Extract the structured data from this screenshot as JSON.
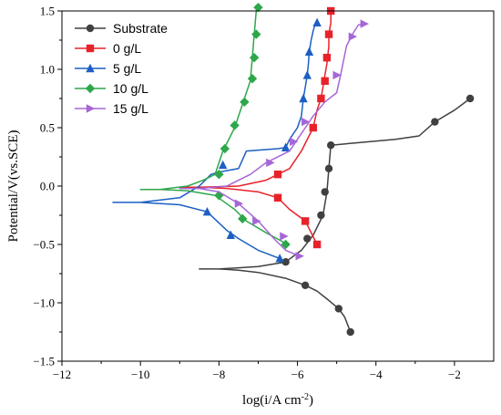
{
  "chart_data": {
    "type": "line",
    "title": "",
    "xlabel": "log(i/A cm",
    "xlabel_sup": "-2",
    "xlabel_tail": ")",
    "ylabel": "Potential/V(vs.SCE)",
    "xlim": [
      -12,
      -1
    ],
    "ylim": [
      -1.5,
      1.5
    ],
    "xticks": [
      -12,
      -10,
      -8,
      -6,
      -4,
      -2
    ],
    "yticks": [
      -1.5,
      -1.0,
      -0.5,
      0.0,
      0.5,
      1.0,
      1.5
    ],
    "xtick_labels": [
      "−12",
      "−10",
      "−8",
      "−6",
      "−4",
      "−2"
    ],
    "ytick_labels": [
      "−1.5",
      "−1.0",
      "−0.5",
      "0.0",
      "0.5",
      "1.0",
      "1.5"
    ],
    "grid": false,
    "legend_position": "top-left",
    "series": [
      {
        "name": "Substrate",
        "color": "#404040",
        "marker": "circle",
        "line": [
          [
            -4.65,
            -1.25
          ],
          [
            -4.8,
            -1.12
          ],
          [
            -4.95,
            -1.05
          ],
          [
            -5.2,
            -0.98
          ],
          [
            -5.5,
            -0.9
          ],
          [
            -5.8,
            -0.85
          ],
          [
            -6.3,
            -0.79
          ],
          [
            -7.0,
            -0.74
          ],
          [
            -7.5,
            -0.72
          ],
          [
            -8.0,
            -0.71
          ],
          [
            -8.5,
            -0.71
          ],
          [
            -8.0,
            -0.71
          ],
          [
            -7.0,
            -0.69
          ],
          [
            -6.3,
            -0.65
          ],
          [
            -5.9,
            -0.55
          ],
          [
            -5.6,
            -0.42
          ],
          [
            -5.35,
            -0.25
          ],
          [
            -5.25,
            -0.05
          ],
          [
            -5.2,
            0.15
          ],
          [
            -5.15,
            0.35
          ],
          [
            -4.5,
            0.37
          ],
          [
            -3.5,
            0.4
          ],
          [
            -2.9,
            0.43
          ],
          [
            -2.5,
            0.55
          ],
          [
            -2.0,
            0.65
          ],
          [
            -1.6,
            0.75
          ]
        ],
        "markers": [
          [
            -4.65,
            -1.25
          ],
          [
            -4.95,
            -1.05
          ],
          [
            -5.8,
            -0.85
          ],
          [
            -6.3,
            -0.65
          ],
          [
            -5.75,
            -0.45
          ],
          [
            -5.4,
            -0.25
          ],
          [
            -5.3,
            -0.05
          ],
          [
            -5.2,
            0.15
          ],
          [
            -5.15,
            0.35
          ],
          [
            -2.5,
            0.55
          ],
          [
            -1.6,
            0.75
          ]
        ]
      },
      {
        "name": "0 g/L",
        "color": "#e8222a",
        "marker": "square",
        "line": [
          [
            -5.5,
            -0.5
          ],
          [
            -5.8,
            -0.3
          ],
          [
            -6.2,
            -0.2
          ],
          [
            -6.5,
            -0.1
          ],
          [
            -7.0,
            -0.05
          ],
          [
            -7.8,
            -0.02
          ],
          [
            -8.5,
            -0.01
          ],
          [
            -9.0,
            -0.01
          ],
          [
            -8.5,
            -0.01
          ],
          [
            -7.5,
            0.0
          ],
          [
            -6.8,
            0.05
          ],
          [
            -6.5,
            0.1
          ],
          [
            -6.2,
            0.15
          ],
          [
            -5.9,
            0.3
          ],
          [
            -5.6,
            0.5
          ],
          [
            -5.5,
            0.65
          ],
          [
            -5.4,
            0.75
          ],
          [
            -5.35,
            0.85
          ],
          [
            -5.3,
            0.95
          ],
          [
            -5.25,
            1.05
          ],
          [
            -5.2,
            1.2
          ],
          [
            -5.2,
            1.3
          ],
          [
            -5.15,
            1.4
          ],
          [
            -5.15,
            1.5
          ]
        ],
        "markers": [
          [
            -5.5,
            -0.5
          ],
          [
            -5.8,
            -0.3
          ],
          [
            -6.5,
            -0.1
          ],
          [
            -6.5,
            0.1
          ],
          [
            -5.6,
            0.5
          ],
          [
            -5.4,
            0.75
          ],
          [
            -5.3,
            0.9
          ],
          [
            -5.25,
            1.1
          ],
          [
            -5.2,
            1.3
          ],
          [
            -5.15,
            1.5
          ]
        ]
      },
      {
        "name": "5 g/L",
        "color": "#1c5fc2",
        "marker": "triangle-up",
        "line": [
          [
            -6.45,
            -0.62
          ],
          [
            -7.0,
            -0.55
          ],
          [
            -7.5,
            -0.45
          ],
          [
            -7.8,
            -0.38
          ],
          [
            -8.3,
            -0.22
          ],
          [
            -9.0,
            -0.16
          ],
          [
            -10.0,
            -0.14
          ],
          [
            -10.7,
            -0.14
          ],
          [
            -10.0,
            -0.14
          ],
          [
            -9.0,
            -0.1
          ],
          [
            -8.5,
            0.0
          ],
          [
            -8.2,
            0.1
          ],
          [
            -8.0,
            0.12
          ],
          [
            -7.5,
            0.15
          ],
          [
            -7.3,
            0.3
          ],
          [
            -6.5,
            0.32
          ],
          [
            -6.3,
            0.33
          ],
          [
            -6.2,
            0.4
          ],
          [
            -6.0,
            0.5
          ],
          [
            -5.9,
            0.6
          ],
          [
            -5.85,
            0.75
          ],
          [
            -5.8,
            0.85
          ],
          [
            -5.75,
            0.95
          ],
          [
            -5.72,
            1.05
          ],
          [
            -5.7,
            1.15
          ],
          [
            -5.65,
            1.25
          ],
          [
            -5.6,
            1.33
          ],
          [
            -5.55,
            1.38
          ],
          [
            -5.5,
            1.4
          ]
        ],
        "markers": [
          [
            -6.45,
            -0.62
          ],
          [
            -7.7,
            -0.42
          ],
          [
            -8.3,
            -0.22
          ],
          [
            -7.9,
            0.18
          ],
          [
            -6.3,
            0.33
          ],
          [
            -5.85,
            0.75
          ],
          [
            -5.75,
            0.95
          ],
          [
            -5.7,
            1.15
          ],
          [
            -5.5,
            1.4
          ]
        ]
      },
      {
        "name": "10 g/L",
        "color": "#2ea74a",
        "marker": "diamond",
        "line": [
          [
            -6.25,
            -0.5
          ],
          [
            -6.8,
            -0.4
          ],
          [
            -7.3,
            -0.3
          ],
          [
            -7.6,
            -0.2
          ],
          [
            -8.1,
            -0.08
          ],
          [
            -8.8,
            -0.04
          ],
          [
            -9.5,
            -0.03
          ],
          [
            -10.0,
            -0.03
          ],
          [
            -9.5,
            -0.03
          ],
          [
            -8.8,
            0.0
          ],
          [
            -8.4,
            0.05
          ],
          [
            -8.1,
            0.1
          ],
          [
            -7.9,
            0.3
          ],
          [
            -7.6,
            0.5
          ],
          [
            -7.4,
            0.7
          ],
          [
            -7.2,
            0.9
          ],
          [
            -7.15,
            1.1
          ],
          [
            -7.1,
            1.3
          ],
          [
            -7.05,
            1.5
          ],
          [
            -7.0,
            1.53
          ]
        ],
        "markers": [
          [
            -6.3,
            -0.5
          ],
          [
            -7.4,
            -0.28
          ],
          [
            -8.0,
            -0.08
          ],
          [
            -8.0,
            0.1
          ],
          [
            -7.85,
            0.32
          ],
          [
            -7.6,
            0.52
          ],
          [
            -7.35,
            0.72
          ],
          [
            -7.15,
            0.92
          ],
          [
            -7.1,
            1.1
          ],
          [
            -7.05,
            1.3
          ],
          [
            -7.0,
            1.53
          ]
        ]
      },
      {
        "name": "15 g/L",
        "color": "#a666d6",
        "marker": "triangle-right",
        "line": [
          [
            -5.95,
            -0.6
          ],
          [
            -6.3,
            -0.55
          ],
          [
            -6.6,
            -0.45
          ],
          [
            -7.0,
            -0.3
          ],
          [
            -7.5,
            -0.15
          ],
          [
            -8.0,
            -0.05
          ],
          [
            -8.5,
            -0.02
          ],
          [
            -9.0,
            -0.02
          ],
          [
            -8.5,
            -0.02
          ],
          [
            -7.8,
            0.0
          ],
          [
            -7.2,
            0.1
          ],
          [
            -6.8,
            0.2
          ],
          [
            -6.2,
            0.3
          ],
          [
            -6.0,
            0.4
          ],
          [
            -5.8,
            0.5
          ],
          [
            -5.6,
            0.6
          ],
          [
            -5.3,
            0.72
          ],
          [
            -5.0,
            0.8
          ],
          [
            -4.9,
            0.95
          ],
          [
            -4.75,
            1.2
          ],
          [
            -4.6,
            1.3
          ],
          [
            -4.45,
            1.38
          ],
          [
            -4.3,
            1.39
          ]
        ],
        "markers": [
          [
            -5.95,
            -0.6
          ],
          [
            -6.35,
            -0.43
          ],
          [
            -7.05,
            -0.3
          ],
          [
            -7.5,
            -0.15
          ],
          [
            -6.7,
            0.2
          ],
          [
            -6.1,
            0.38
          ],
          [
            -5.8,
            0.55
          ],
          [
            -5.0,
            0.95
          ],
          [
            -4.6,
            1.28
          ],
          [
            -4.3,
            1.39
          ]
        ]
      }
    ]
  }
}
